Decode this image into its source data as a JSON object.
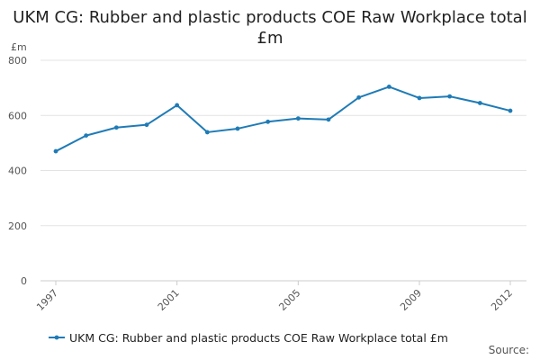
{
  "chart_data": {
    "type": "line",
    "title": "UKM CG: Rubber and plastic products COE Raw Workplace total £m",
    "ylabel": "£m",
    "xlabel": "",
    "ylim": [
      0,
      800
    ],
    "yticks": [
      0,
      200,
      400,
      600,
      800
    ],
    "x": [
      1997,
      1998,
      1999,
      2000,
      2001,
      2002,
      2003,
      2004,
      2005,
      2006,
      2007,
      2008,
      2009,
      2010,
      2011,
      2012
    ],
    "xticks": [
      "1997",
      "2001",
      "2005",
      "2009",
      "2012"
    ],
    "series": [
      {
        "name": "UKM CG: Rubber and plastic products COE Raw Workplace total £m",
        "values": [
          470,
          527,
          556,
          566,
          637,
          539,
          552,
          577,
          589,
          585,
          665,
          704,
          663,
          669,
          645,
          617
        ]
      }
    ],
    "grid": "horizontal",
    "legend": "bottom",
    "source": "Source:",
    "colors": {
      "series": "#1f7bb6",
      "grid": "#e3e3e3",
      "axis": "#cccccc"
    }
  }
}
